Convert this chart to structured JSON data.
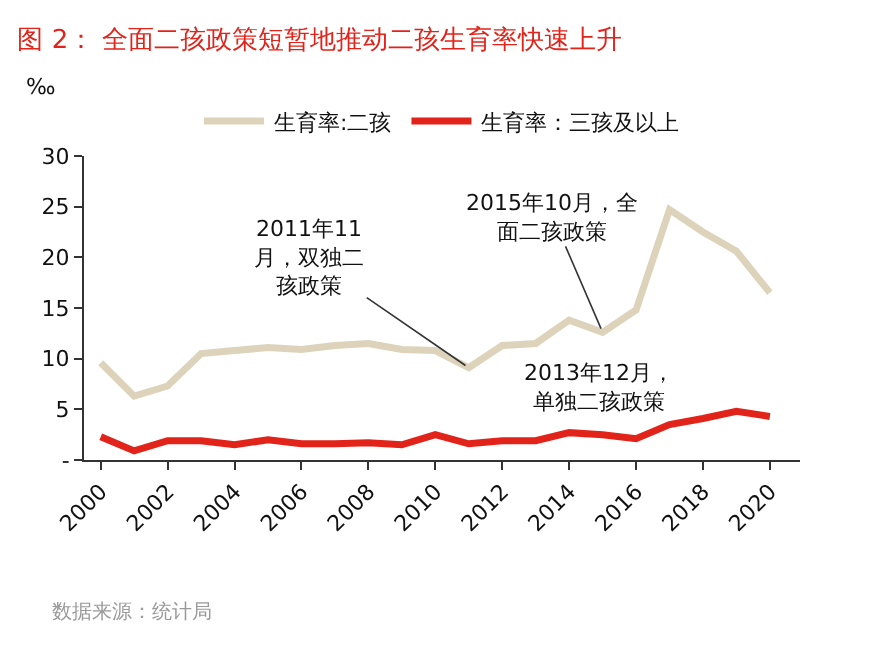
{
  "chart_data": {
    "type": "line",
    "title": "图 2： 全面二孩政策短暂地推动二孩生育率快速上升",
    "ylabel": "‰",
    "x": [
      2000,
      2001,
      2002,
      2003,
      2004,
      2005,
      2006,
      2007,
      2008,
      2009,
      2010,
      2011,
      2012,
      2013,
      2014,
      2015,
      2016,
      2017,
      2018,
      2019,
      2020
    ],
    "series": [
      {
        "name": "生育率:二孩",
        "color": "#ddd3bb",
        "values": [
          9.6,
          6.3,
          7.3,
          10.5,
          10.8,
          11.1,
          10.9,
          11.3,
          11.5,
          10.9,
          10.8,
          9.1,
          11.3,
          11.5,
          13.8,
          12.6,
          14.8,
          24.7,
          22.5,
          20.6,
          16.5
        ]
      },
      {
        "name": "生育率：三孩及以上",
        "color": "#e2231a",
        "values": [
          2.3,
          0.9,
          1.9,
          1.9,
          1.5,
          2.0,
          1.6,
          1.6,
          1.7,
          1.5,
          2.5,
          1.6,
          1.9,
          1.9,
          2.7,
          2.5,
          2.1,
          3.5,
          4.1,
          4.8,
          4.3
        ]
      }
    ],
    "xlim": [
      1999.5,
      2020.9
    ],
    "xticks": [
      2000,
      2002,
      2004,
      2006,
      2008,
      2010,
      2012,
      2014,
      2016,
      2018,
      2020
    ],
    "ylim": [
      0,
      30
    ],
    "yticks": [
      {
        "value": 0,
        "label": "-"
      },
      5,
      10,
      15,
      20,
      25,
      30
    ],
    "grid": false,
    "legend": "top",
    "marker": "none",
    "line_style": "solid",
    "annotations": [
      {
        "text": "2011年11月，双独二孩政策",
        "x": 2011,
        "y": 9.1
      },
      {
        "text": "2015年10月，全面二孩政策",
        "x": 2015,
        "y": 12.6
      },
      "2013年12月，单独二孩政策",
      "数据来源：统计局"
    ]
  }
}
